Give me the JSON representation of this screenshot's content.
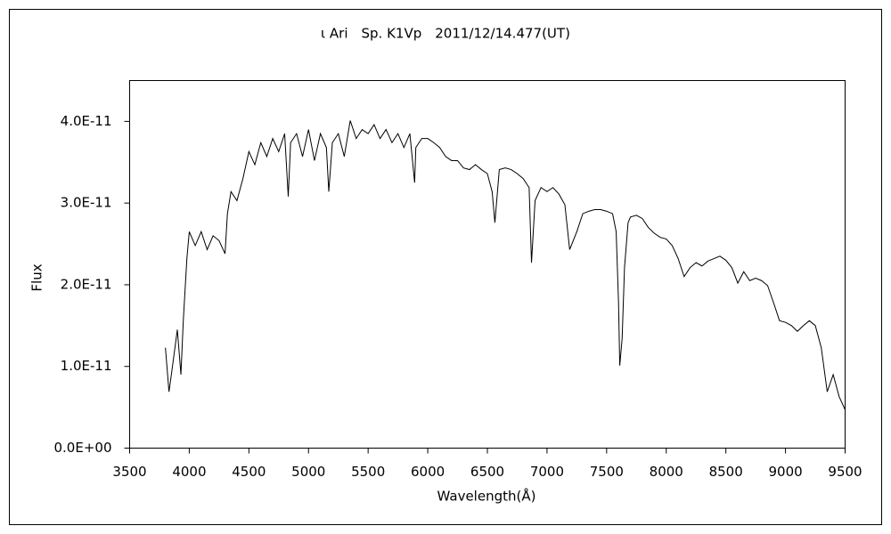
{
  "chart_data": {
    "type": "line",
    "title": "ι Ari　Sp. K1Vp　2011/12/14.477(UT)",
    "x_label": "Wavelength(Å)",
    "y_label": "Flux",
    "xlim": [
      3500,
      9500
    ],
    "xticks": [
      3500,
      4000,
      4500,
      5000,
      5500,
      6000,
      6500,
      7000,
      7500,
      8000,
      8500,
      9000,
      9500
    ],
    "ylim": [
      0,
      4.5e-11
    ],
    "yticks": [
      {
        "value": 0,
        "label": "0.0E+00"
      },
      {
        "value": 1e-11,
        "label": "1.0E-11"
      },
      {
        "value": 2e-11,
        "label": "2.0E-11"
      },
      {
        "value": 3e-11,
        "label": "3.0E-11"
      },
      {
        "value": 4e-11,
        "label": "4.0E-11"
      }
    ],
    "grid": false,
    "series": [
      {
        "color": "#000000",
        "x": [
          3800,
          3830,
          3850,
          3900,
          3930,
          3950,
          3980,
          4000,
          4050,
          4100,
          4150,
          4200,
          4250,
          4300,
          4320,
          4350,
          4400,
          4450,
          4500,
          4550,
          4600,
          4650,
          4700,
          4750,
          4800,
          4830,
          4850,
          4900,
          4950,
          5000,
          5050,
          5100,
          5150,
          5170,
          5200,
          5250,
          5300,
          5350,
          5400,
          5450,
          5500,
          5550,
          5600,
          5650,
          5700,
          5750,
          5800,
          5850,
          5890,
          5900,
          5950,
          6000,
          6050,
          6100,
          6150,
          6200,
          6250,
          6300,
          6350,
          6400,
          6450,
          6500,
          6540,
          6563,
          6600,
          6650,
          6700,
          6750,
          6800,
          6850,
          6870,
          6900,
          6950,
          7000,
          7050,
          7100,
          7150,
          7190,
          7250,
          7300,
          7350,
          7400,
          7450,
          7500,
          7550,
          7580,
          7600,
          7610,
          7630,
          7650,
          7680,
          7700,
          7750,
          7800,
          7850,
          7900,
          7950,
          8000,
          8050,
          8100,
          8150,
          8200,
          8250,
          8300,
          8350,
          8400,
          8450,
          8500,
          8550,
          8600,
          8650,
          8700,
          8750,
          8800,
          8850,
          8900,
          8950,
          9000,
          9050,
          9100,
          9150,
          9200,
          9250,
          9300,
          9350,
          9400,
          9450,
          9500
        ],
        "values": [
          1.23e-11,
          6.9e-12,
          9e-12,
          1.45e-11,
          9e-12,
          1.56e-11,
          2.32e-11,
          2.65e-11,
          2.48e-11,
          2.65e-11,
          2.43e-11,
          2.6e-11,
          2.54e-11,
          2.38e-11,
          2.87e-11,
          3.14e-11,
          3.03e-11,
          3.3e-11,
          3.63e-11,
          3.47e-11,
          3.74e-11,
          3.57e-11,
          3.79e-11,
          3.63e-11,
          3.85e-11,
          3.08e-11,
          3.74e-11,
          3.85e-11,
          3.57e-11,
          3.9e-11,
          3.52e-11,
          3.85e-11,
          3.68e-11,
          3.14e-11,
          3.74e-11,
          3.85e-11,
          3.57e-11,
          4.01e-11,
          3.79e-11,
          3.9e-11,
          3.85e-11,
          3.96e-11,
          3.79e-11,
          3.9e-11,
          3.74e-11,
          3.85e-11,
          3.68e-11,
          3.85e-11,
          3.25e-11,
          3.68e-11,
          3.79e-11,
          3.79e-11,
          3.74e-11,
          3.68e-11,
          3.57e-11,
          3.52e-11,
          3.52e-11,
          3.43e-11,
          3.41e-11,
          3.47e-11,
          3.41e-11,
          3.36e-11,
          3.14e-11,
          2.76e-11,
          3.41e-11,
          3.43e-11,
          3.41e-11,
          3.36e-11,
          3.3e-11,
          3.19e-11,
          2.27e-11,
          3.03e-11,
          3.19e-11,
          3.14e-11,
          3.19e-11,
          3.11e-11,
          2.98e-11,
          2.43e-11,
          2.65e-11,
          2.87e-11,
          2.9e-11,
          2.92e-11,
          2.92e-11,
          2.9e-11,
          2.87e-11,
          2.65e-11,
          1.78e-11,
          1.01e-11,
          1.34e-11,
          2.21e-11,
          2.76e-11,
          2.83e-11,
          2.85e-11,
          2.81e-11,
          2.7e-11,
          2.63e-11,
          2.58e-11,
          2.56e-11,
          2.48e-11,
          2.32e-11,
          2.1e-11,
          2.21e-11,
          2.27e-11,
          2.23e-11,
          2.29e-11,
          2.32e-11,
          2.35e-11,
          2.3e-11,
          2.21e-11,
          2.02e-11,
          2.16e-11,
          2.05e-11,
          2.08e-11,
          2.05e-11,
          1.99e-11,
          1.78e-11,
          1.56e-11,
          1.54e-11,
          1.5e-11,
          1.43e-11,
          1.5e-11,
          1.56e-11,
          1.5e-11,
          1.23e-11,
          6.9e-12,
          9e-12,
          6.3e-12,
          4.7e-12
        ]
      }
    ]
  }
}
